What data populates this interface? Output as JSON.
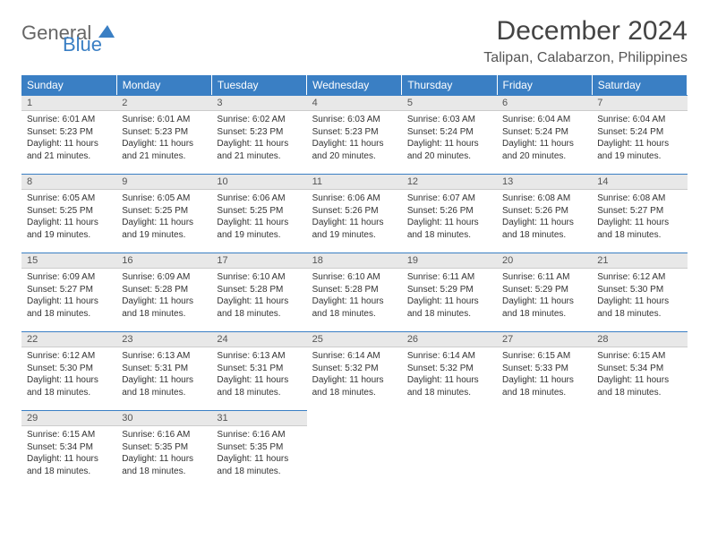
{
  "logo": {
    "part1": "General",
    "part2": "Blue"
  },
  "title": "December 2024",
  "location": "Talipan, Calabarzon, Philippines",
  "columns": [
    "Sunday",
    "Monday",
    "Tuesday",
    "Wednesday",
    "Thursday",
    "Friday",
    "Saturday"
  ],
  "colors": {
    "header_bg": "#3a7fc4",
    "header_text": "#ffffff",
    "daynum_bg": "#e8e8e8",
    "border_top": "#3a7fc4"
  },
  "typography": {
    "title_fontsize": 30,
    "location_fontsize": 16,
    "header_fontsize": 12,
    "body_fontsize": 10
  },
  "days": [
    {
      "n": 1,
      "sunrise": "6:01 AM",
      "sunset": "5:23 PM",
      "daylight": "11 hours and 21 minutes."
    },
    {
      "n": 2,
      "sunrise": "6:01 AM",
      "sunset": "5:23 PM",
      "daylight": "11 hours and 21 minutes."
    },
    {
      "n": 3,
      "sunrise": "6:02 AM",
      "sunset": "5:23 PM",
      "daylight": "11 hours and 21 minutes."
    },
    {
      "n": 4,
      "sunrise": "6:03 AM",
      "sunset": "5:23 PM",
      "daylight": "11 hours and 20 minutes."
    },
    {
      "n": 5,
      "sunrise": "6:03 AM",
      "sunset": "5:24 PM",
      "daylight": "11 hours and 20 minutes."
    },
    {
      "n": 6,
      "sunrise": "6:04 AM",
      "sunset": "5:24 PM",
      "daylight": "11 hours and 20 minutes."
    },
    {
      "n": 7,
      "sunrise": "6:04 AM",
      "sunset": "5:24 PM",
      "daylight": "11 hours and 19 minutes."
    },
    {
      "n": 8,
      "sunrise": "6:05 AM",
      "sunset": "5:25 PM",
      "daylight": "11 hours and 19 minutes."
    },
    {
      "n": 9,
      "sunrise": "6:05 AM",
      "sunset": "5:25 PM",
      "daylight": "11 hours and 19 minutes."
    },
    {
      "n": 10,
      "sunrise": "6:06 AM",
      "sunset": "5:25 PM",
      "daylight": "11 hours and 19 minutes."
    },
    {
      "n": 11,
      "sunrise": "6:06 AM",
      "sunset": "5:26 PM",
      "daylight": "11 hours and 19 minutes."
    },
    {
      "n": 12,
      "sunrise": "6:07 AM",
      "sunset": "5:26 PM",
      "daylight": "11 hours and 18 minutes."
    },
    {
      "n": 13,
      "sunrise": "6:08 AM",
      "sunset": "5:26 PM",
      "daylight": "11 hours and 18 minutes."
    },
    {
      "n": 14,
      "sunrise": "6:08 AM",
      "sunset": "5:27 PM",
      "daylight": "11 hours and 18 minutes."
    },
    {
      "n": 15,
      "sunrise": "6:09 AM",
      "sunset": "5:27 PM",
      "daylight": "11 hours and 18 minutes."
    },
    {
      "n": 16,
      "sunrise": "6:09 AM",
      "sunset": "5:28 PM",
      "daylight": "11 hours and 18 minutes."
    },
    {
      "n": 17,
      "sunrise": "6:10 AM",
      "sunset": "5:28 PM",
      "daylight": "11 hours and 18 minutes."
    },
    {
      "n": 18,
      "sunrise": "6:10 AM",
      "sunset": "5:28 PM",
      "daylight": "11 hours and 18 minutes."
    },
    {
      "n": 19,
      "sunrise": "6:11 AM",
      "sunset": "5:29 PM",
      "daylight": "11 hours and 18 minutes."
    },
    {
      "n": 20,
      "sunrise": "6:11 AM",
      "sunset": "5:29 PM",
      "daylight": "11 hours and 18 minutes."
    },
    {
      "n": 21,
      "sunrise": "6:12 AM",
      "sunset": "5:30 PM",
      "daylight": "11 hours and 18 minutes."
    },
    {
      "n": 22,
      "sunrise": "6:12 AM",
      "sunset": "5:30 PM",
      "daylight": "11 hours and 18 minutes."
    },
    {
      "n": 23,
      "sunrise": "6:13 AM",
      "sunset": "5:31 PM",
      "daylight": "11 hours and 18 minutes."
    },
    {
      "n": 24,
      "sunrise": "6:13 AM",
      "sunset": "5:31 PM",
      "daylight": "11 hours and 18 minutes."
    },
    {
      "n": 25,
      "sunrise": "6:14 AM",
      "sunset": "5:32 PM",
      "daylight": "11 hours and 18 minutes."
    },
    {
      "n": 26,
      "sunrise": "6:14 AM",
      "sunset": "5:32 PM",
      "daylight": "11 hours and 18 minutes."
    },
    {
      "n": 27,
      "sunrise": "6:15 AM",
      "sunset": "5:33 PM",
      "daylight": "11 hours and 18 minutes."
    },
    {
      "n": 28,
      "sunrise": "6:15 AM",
      "sunset": "5:34 PM",
      "daylight": "11 hours and 18 minutes."
    },
    {
      "n": 29,
      "sunrise": "6:15 AM",
      "sunset": "5:34 PM",
      "daylight": "11 hours and 18 minutes."
    },
    {
      "n": 30,
      "sunrise": "6:16 AM",
      "sunset": "5:35 PM",
      "daylight": "11 hours and 18 minutes."
    },
    {
      "n": 31,
      "sunrise": "6:16 AM",
      "sunset": "5:35 PM",
      "daylight": "11 hours and 18 minutes."
    }
  ],
  "labels": {
    "sunrise": "Sunrise:",
    "sunset": "Sunset:",
    "daylight": "Daylight:"
  }
}
